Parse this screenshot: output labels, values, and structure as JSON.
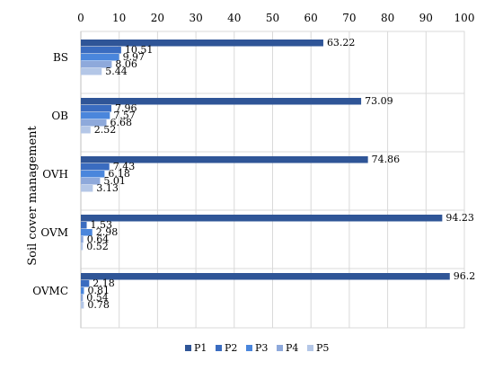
{
  "chart_data": {
    "type": "bar",
    "orientation": "horizontal",
    "title": "",
    "xlabel": "",
    "ylabel": "Soil cover management",
    "xlim": [
      0,
      100
    ],
    "x_ticks": [
      "0",
      "10",
      "20",
      "30",
      "40",
      "50",
      "60",
      "70",
      "80",
      "90",
      "100"
    ],
    "x_axis_position": "top",
    "grid": true,
    "legend_position": "bottom",
    "categories": [
      "BS",
      "OB",
      "OVH",
      "OVM",
      "OVMC"
    ],
    "series": [
      {
        "name": "P1",
        "color": "#2F5597",
        "values": [
          63.22,
          73.09,
          74.86,
          94.23,
          96.2
        ],
        "labels": [
          "63.22",
          "73.09",
          "74.86",
          "94.23",
          "96.2"
        ]
      },
      {
        "name": "P2",
        "color": "#3A6CC0",
        "values": [
          10.51,
          7.96,
          7.43,
          1.53,
          2.18
        ],
        "labels": [
          "10.51",
          "7.96",
          "7.43",
          "1.53",
          "2.18"
        ]
      },
      {
        "name": "P3",
        "color": "#4A86DC",
        "values": [
          9.97,
          7.57,
          6.18,
          2.98,
          0.81
        ],
        "labels": [
          "9.97",
          "7.57",
          "6.18",
          "2.98",
          "0.81"
        ]
      },
      {
        "name": "P4",
        "color": "#8EA9DB",
        "values": [
          8.06,
          6.68,
          5.01,
          0.64,
          0.54
        ],
        "labels": [
          "8.06",
          "6.68",
          "5.01",
          "0.64",
          "0.54"
        ]
      },
      {
        "name": "P5",
        "color": "#B4C7E7",
        "values": [
          5.44,
          2.52,
          3.13,
          0.52,
          0.78
        ],
        "labels": [
          "5.44",
          "2.52",
          "3.13",
          "0.52",
          "0.78"
        ]
      }
    ]
  }
}
